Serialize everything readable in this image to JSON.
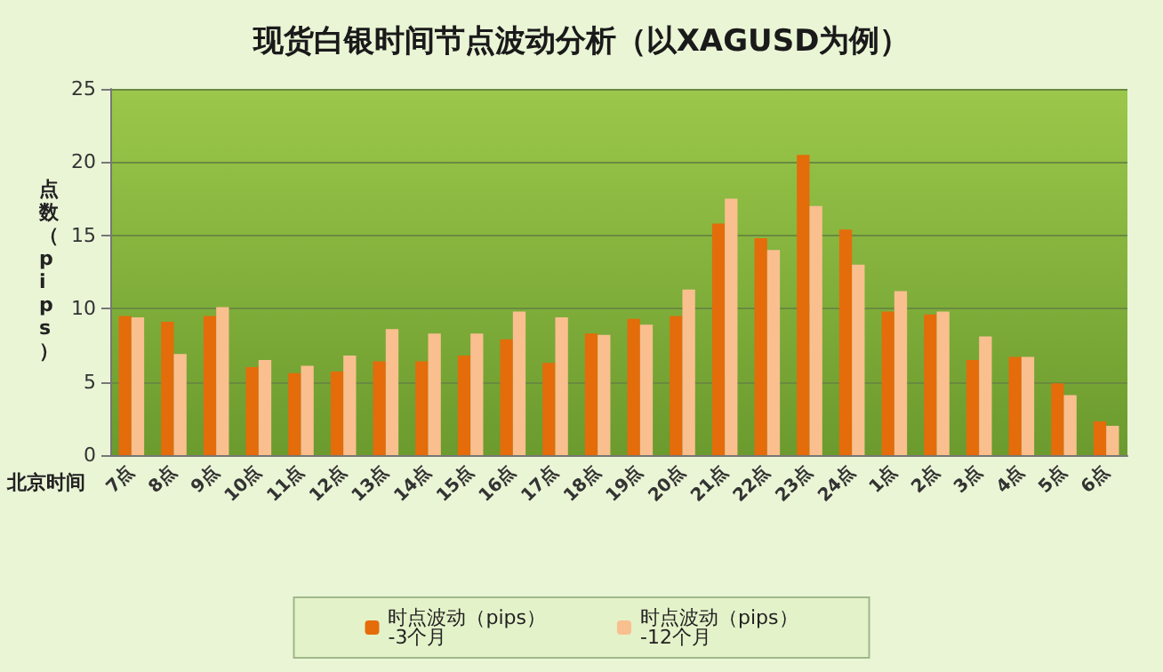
{
  "chart_data": {
    "type": "bar",
    "title": "现货白银时间节点波动分析（以XAGUSD为例）",
    "xlabel": "北京时间",
    "ylabel": "点数（pips）",
    "categories": [
      "7点",
      "8点",
      "9点",
      "10点",
      "11点",
      "12点",
      "13点",
      "14点",
      "15点",
      "16点",
      "17点",
      "18点",
      "19点",
      "20点",
      "21点",
      "22点",
      "23点",
      "24点",
      "1点",
      "2点",
      "3点",
      "4点",
      "5点",
      "6点"
    ],
    "series": [
      {
        "name": "时点波动（pips）\n-3个月",
        "color": "#e46c0a",
        "values": [
          9.5,
          9.1,
          9.5,
          6.0,
          5.6,
          5.7,
          6.4,
          6.4,
          6.8,
          7.9,
          6.3,
          8.3,
          9.3,
          9.5,
          15.8,
          14.8,
          20.5,
          15.4,
          9.8,
          9.6,
          6.5,
          6.7,
          4.9,
          2.3
        ]
      },
      {
        "name": "时点波动（pips）\n-12个月",
        "color": "#fabf8f",
        "values": [
          9.4,
          6.9,
          10.1,
          6.5,
          6.1,
          6.8,
          8.6,
          8.3,
          8.3,
          9.8,
          9.4,
          8.2,
          8.9,
          11.3,
          17.5,
          14.0,
          17.0,
          13.0,
          11.2,
          9.8,
          8.1,
          6.7,
          4.1,
          2.0
        ]
      }
    ],
    "ylim": [
      0,
      25
    ],
    "yticks": [
      0,
      5,
      10,
      15,
      20,
      25
    ],
    "grid": "y",
    "legend": "bottom"
  }
}
